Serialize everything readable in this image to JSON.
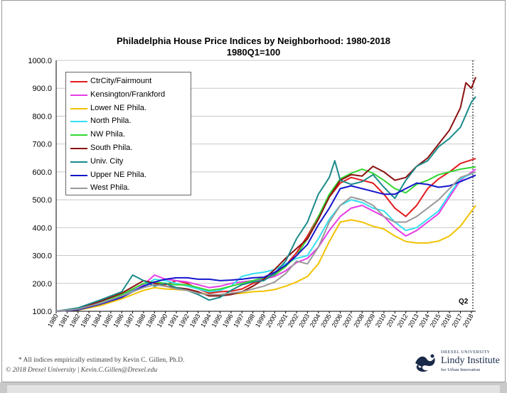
{
  "chart_data": {
    "type": "line",
    "title": "Philadelphia House Price Indices by Neighborhood: 1980-2018",
    "subtitle": "1980Q1=100",
    "xlabel": "",
    "ylabel": "",
    "xlim": [
      1980,
      2018.4
    ],
    "ylim": [
      100,
      1000
    ],
    "yticks": [
      "100.0",
      "200.0",
      "300.0",
      "400.0",
      "500.0",
      "600.0",
      "700.0",
      "800.0",
      "900.0",
      "1000.0"
    ],
    "xticks": [
      "1980",
      "1981",
      "1982",
      "1983",
      "1984",
      "1985",
      "1986",
      "1987",
      "1988",
      "1989",
      "1990",
      "1991",
      "1992",
      "1993",
      "1994",
      "1995",
      "1996",
      "1997",
      "1998",
      "1999",
      "2000",
      "2001",
      "2002",
      "2003",
      "2004",
      "2005",
      "2006",
      "2007",
      "2008",
      "2009",
      "2010",
      "2011",
      "2012",
      "2013",
      "2014",
      "2015",
      "2016",
      "2017",
      "2018"
    ],
    "grid": true,
    "legend_position": "top-left",
    "annotation": "Q2",
    "series": [
      {
        "name": "CtrCity/Fairmount",
        "color": "#e31a1c",
        "x": [
          1980,
          1982,
          1984,
          1986,
          1988,
          1989,
          1990,
          1991,
          1992,
          1993,
          1994,
          1995,
          1996,
          1997,
          1998,
          1999,
          2000,
          2001,
          2002,
          2003,
          2004,
          2005,
          2006,
          2007,
          2008,
          2009,
          2010,
          2011,
          2012,
          2013,
          2014,
          2015,
          2016,
          2017,
          2018.4
        ],
        "y": [
          100,
          108,
          135,
          160,
          190,
          205,
          195,
          210,
          200,
          180,
          165,
          170,
          172,
          180,
          200,
          215,
          235,
          265,
          310,
          370,
          440,
          510,
          560,
          580,
          570,
          560,
          520,
          470,
          440,
          480,
          540,
          575,
          600,
          630,
          648
        ]
      },
      {
        "name": "Kensington/Frankford",
        "color": "#e63ce6",
        "x": [
          1980,
          1982,
          1984,
          1986,
          1988,
          1989,
          1990,
          1991,
          1992,
          1993,
          1994,
          1995,
          1996,
          1997,
          1998,
          1999,
          2000,
          2001,
          2002,
          2003,
          2004,
          2005,
          2006,
          2007,
          2008,
          2009,
          2010,
          2011,
          2012,
          2013,
          2014,
          2015,
          2016,
          2017,
          2018.4
        ],
        "y": [
          100,
          105,
          125,
          150,
          195,
          230,
          215,
          210,
          205,
          195,
          185,
          190,
          200,
          205,
          210,
          215,
          225,
          245,
          275,
          290,
          330,
          390,
          440,
          470,
          480,
          460,
          440,
          400,
          370,
          390,
          420,
          450,
          510,
          570,
          610
        ]
      },
      {
        "name": "Lower NE Phila.",
        "color": "#f2c200",
        "x": [
          1980,
          1982,
          1984,
          1986,
          1988,
          1989,
          1990,
          1991,
          1992,
          1993,
          1994,
          1995,
          1996,
          1997,
          1998,
          1999,
          2000,
          2001,
          2002,
          2003,
          2004,
          2005,
          2006,
          2007,
          2008,
          2009,
          2010,
          2011,
          2012,
          2013,
          2014,
          2015,
          2016,
          2017,
          2018.4
        ],
        "y": [
          100,
          104,
          120,
          145,
          175,
          185,
          180,
          178,
          175,
          168,
          160,
          160,
          162,
          165,
          170,
          172,
          178,
          190,
          205,
          225,
          270,
          350,
          420,
          428,
          420,
          405,
          395,
          370,
          350,
          345,
          345,
          352,
          370,
          405,
          480
        ]
      },
      {
        "name": "North Phila.",
        "color": "#33e0f0",
        "x": [
          1980,
          1982,
          1984,
          1986,
          1988,
          1989,
          1990,
          1991,
          1992,
          1993,
          1994,
          1995,
          1996,
          1997,
          1998,
          1999,
          2000,
          2001,
          2002,
          2003,
          2004,
          2005,
          2006,
          2007,
          2008,
          2009,
          2010,
          2011,
          2012,
          2013,
          2014,
          2015,
          2016,
          2017,
          2018.4
        ],
        "y": [
          100,
          110,
          130,
          155,
          190,
          215,
          210,
          200,
          190,
          180,
          170,
          175,
          190,
          225,
          235,
          240,
          250,
          270,
          290,
          300,
          360,
          430,
          480,
          500,
          490,
          470,
          460,
          420,
          390,
          400,
          430,
          460,
          520,
          575,
          600
        ]
      },
      {
        "name": "NW Phila.",
        "color": "#33d633",
        "x": [
          1980,
          1982,
          1984,
          1986,
          1988,
          1989,
          1990,
          1991,
          1992,
          1993,
          1994,
          1995,
          1996,
          1997,
          1998,
          1999,
          2000,
          2001,
          2002,
          2003,
          2004,
          2005,
          2006,
          2007,
          2008,
          2009,
          2010,
          2011,
          2012,
          2013,
          2014,
          2015,
          2016,
          2017,
          2018.4
        ],
        "y": [
          100,
          110,
          135,
          160,
          200,
          205,
          200,
          195,
          195,
          185,
          175,
          180,
          190,
          200,
          210,
          220,
          230,
          260,
          300,
          360,
          440,
          520,
          575,
          595,
          610,
          595,
          570,
          540,
          525,
          555,
          570,
          590,
          600,
          610,
          618
        ]
      },
      {
        "name": "South Phila.",
        "color": "#8b1010",
        "x": [
          1980,
          1982,
          1984,
          1986,
          1988,
          1989,
          1990,
          1991,
          1992,
          1993,
          1994,
          1995,
          1996,
          1997,
          1998,
          1999,
          2000,
          2001,
          2002,
          2003,
          2004,
          2005,
          2006,
          2007,
          2008,
          2009,
          2010,
          2011,
          2012,
          2013,
          2014,
          2015,
          2016,
          2017,
          2017.5,
          2018,
          2018.4
        ],
        "y": [
          100,
          110,
          135,
          165,
          210,
          200,
          190,
          185,
          180,
          170,
          155,
          155,
          160,
          170,
          190,
          215,
          250,
          290,
          325,
          360,
          430,
          510,
          570,
          590,
          585,
          620,
          600,
          570,
          580,
          620,
          650,
          700,
          750,
          830,
          920,
          900,
          940
        ]
      },
      {
        "name": "Univ. City",
        "color": "#1a8a8a",
        "x": [
          1980,
          1982,
          1984,
          1986,
          1987,
          1988,
          1989,
          1990,
          1991,
          1992,
          1993,
          1994,
          1995,
          1996,
          1997,
          1998,
          1999,
          2000,
          2001,
          2002,
          2003,
          2004,
          2005,
          2005.5,
          2006,
          2007,
          2008,
          2009,
          2010,
          2011,
          2012,
          2013,
          2014,
          2015,
          2016,
          2017,
          2018,
          2018.4
        ],
        "y": [
          100,
          112,
          140,
          170,
          230,
          210,
          190,
          200,
          185,
          175,
          160,
          140,
          150,
          175,
          195,
          205,
          210,
          235,
          280,
          360,
          420,
          520,
          580,
          640,
          570,
          555,
          565,
          590,
          545,
          505,
          570,
          620,
          640,
          690,
          720,
          760,
          850,
          870
        ]
      },
      {
        "name": "Upper NE Phila.",
        "color": "#1414cc",
        "x": [
          1980,
          1982,
          1984,
          1986,
          1988,
          1989,
          1990,
          1991,
          1992,
          1993,
          1994,
          1995,
          1996,
          1997,
          1998,
          1999,
          2000,
          2001,
          2002,
          2003,
          2004,
          2005,
          2006,
          2007,
          2008,
          2009,
          2010,
          2011,
          2012,
          2013,
          2014,
          2015,
          2016,
          2017,
          2018.4
        ],
        "y": [
          100,
          105,
          125,
          150,
          190,
          205,
          215,
          220,
          220,
          215,
          215,
          210,
          212,
          215,
          220,
          222,
          240,
          265,
          300,
          340,
          410,
          470,
          540,
          550,
          540,
          530,
          520,
          520,
          540,
          560,
          555,
          545,
          550,
          565,
          588
        ]
      },
      {
        "name": "West Phila.",
        "color": "#999999",
        "x": [
          1980,
          1982,
          1984,
          1986,
          1988,
          1989,
          1990,
          1991,
          1992,
          1993,
          1994,
          1995,
          1996,
          1997,
          1998,
          1999,
          2000,
          2001,
          2002,
          2003,
          2004,
          2005,
          2006,
          2007,
          2008,
          2009,
          2010,
          2011,
          2012,
          2013,
          2014,
          2015,
          2016,
          2017,
          2018.4
        ],
        "y": [
          100,
          108,
          128,
          155,
          185,
          195,
          190,
          180,
          175,
          165,
          160,
          160,
          165,
          170,
          180,
          190,
          205,
          235,
          280,
          270,
          330,
          420,
          480,
          510,
          500,
          480,
          440,
          420,
          420,
          440,
          470,
          500,
          540,
          580,
          600
        ]
      }
    ]
  },
  "footer": {
    "note": "* All indices empirically estimated by Kevin C. Gillen, Ph.D.",
    "copyright": "© 2018 Drexel University | Kevin.C.Gillen@Drexel.edu"
  },
  "logo": {
    "top": "DREXEL UNIVERSITY",
    "main": "Lindy Institute",
    "sub": "for Urban Innovation",
    "color": "#1a2a4a"
  }
}
